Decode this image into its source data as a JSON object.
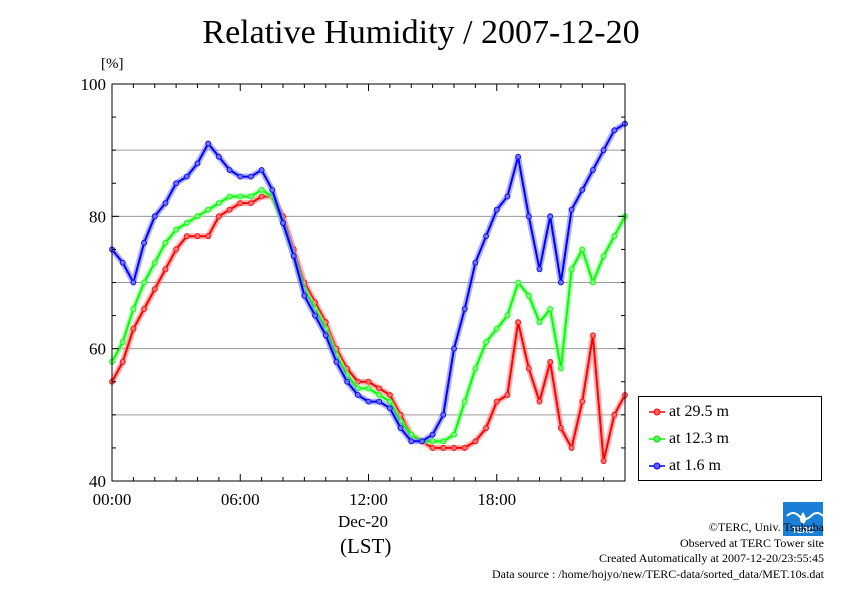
{
  "chart_data": {
    "type": "line",
    "title": "Relative Humidity / 2007-12-20",
    "ylabel": "[%]",
    "xlabel_date": "Dec-20",
    "xlabel_tz": "(LST)",
    "ylim": [
      40,
      100
    ],
    "xlim": [
      0,
      24
    ],
    "x_ticks": [
      {
        "x": 0,
        "label": "00:00"
      },
      {
        "x": 6,
        "label": "06:00"
      },
      {
        "x": 12,
        "label": "12:00"
      },
      {
        "x": 18,
        "label": "18:00"
      }
    ],
    "y_ticks": [
      {
        "y": 40,
        "label": "40"
      },
      {
        "y": 60,
        "label": "60"
      },
      {
        "y": 80,
        "label": "80"
      },
      {
        "y": 100,
        "label": "100"
      }
    ],
    "grid": true,
    "legend_position": "bottom-right outside",
    "series": [
      {
        "name": "at 29.5 m",
        "color": "#ff0000",
        "x": [
          0,
          0.5,
          1,
          1.5,
          2,
          2.5,
          3,
          3.5,
          4,
          4.5,
          5,
          5.5,
          6,
          6.5,
          7,
          7.5,
          8,
          8.5,
          9,
          9.5,
          10,
          10.5,
          11,
          11.5,
          12,
          12.5,
          13,
          13.5,
          14,
          14.5,
          15,
          15.5,
          16,
          16.5,
          17,
          17.5,
          18,
          18.5,
          19,
          19.5,
          20,
          20.5,
          21,
          21.5,
          22,
          22.5,
          23,
          23.5,
          24
        ],
        "y": [
          55,
          58,
          63,
          66,
          69,
          72,
          75,
          77,
          77,
          77,
          80,
          81,
          82,
          82,
          83,
          83,
          80,
          75,
          70,
          67,
          64,
          60,
          57,
          55,
          55,
          54,
          53,
          50,
          47,
          46,
          45,
          45,
          45,
          45,
          46,
          48,
          52,
          53,
          64,
          57,
          52,
          58,
          48,
          45,
          52,
          62,
          43,
          50,
          53
        ]
      },
      {
        "name": "at 12.3 m",
        "color": "#00ff00",
        "x": [
          0,
          0.5,
          1,
          1.5,
          2,
          2.5,
          3,
          3.5,
          4,
          4.5,
          5,
          5.5,
          6,
          6.5,
          7,
          7.5,
          8,
          8.5,
          9,
          9.5,
          10,
          10.5,
          11,
          11.5,
          12,
          12.5,
          13,
          13.5,
          14,
          14.5,
          15,
          15.5,
          16,
          16.5,
          17,
          17.5,
          18,
          18.5,
          19,
          19.5,
          20,
          20.5,
          21,
          21.5,
          22,
          22.5,
          23,
          23.5,
          24
        ],
        "y": [
          58,
          61,
          66,
          70,
          73,
          76,
          78,
          79,
          80,
          81,
          82,
          83,
          83,
          83,
          84,
          83,
          79,
          74,
          69,
          66,
          63,
          59,
          56,
          54,
          54,
          53,
          52,
          49,
          47,
          46,
          46,
          46,
          47,
          52,
          57,
          61,
          63,
          65,
          70,
          68,
          64,
          66,
          57,
          72,
          75,
          70,
          74,
          77,
          80
        ]
      },
      {
        "name": "at 1.6 m",
        "color": "#0000ff",
        "x": [
          0,
          0.5,
          1,
          1.5,
          2,
          2.5,
          3,
          3.5,
          4,
          4.5,
          5,
          5.5,
          6,
          6.5,
          7,
          7.5,
          8,
          8.5,
          9,
          9.5,
          10,
          10.5,
          11,
          11.5,
          12,
          12.5,
          13,
          13.5,
          14,
          14.5,
          15,
          15.5,
          16,
          16.5,
          17,
          17.5,
          18,
          18.5,
          19,
          19.5,
          20,
          20.5,
          21,
          21.5,
          22,
          22.5,
          23,
          23.5,
          24
        ],
        "y": [
          75,
          73,
          70,
          76,
          80,
          82,
          85,
          86,
          88,
          91,
          89,
          87,
          86,
          86,
          87,
          84,
          79,
          74,
          68,
          65,
          62,
          58,
          55,
          53,
          52,
          52,
          51,
          48,
          46,
          46,
          47,
          50,
          60,
          66,
          73,
          77,
          81,
          83,
          89,
          80,
          72,
          80,
          70,
          81,
          84,
          87,
          90,
          93,
          94
        ]
      }
    ]
  },
  "credits": {
    "copyright": "©TERC, Univ. Tsukuba",
    "site": "Observed at TERC Tower site",
    "created": "Created Automatically at 2007-12-20/23:55:45",
    "source": "Data source : /home/hojyo/new/TERC-data/sorted_data/MET.10s.dat"
  },
  "logo": {
    "icon": "terc-logo-icon",
    "text": "TERC",
    "color": "#1a7fd6"
  }
}
